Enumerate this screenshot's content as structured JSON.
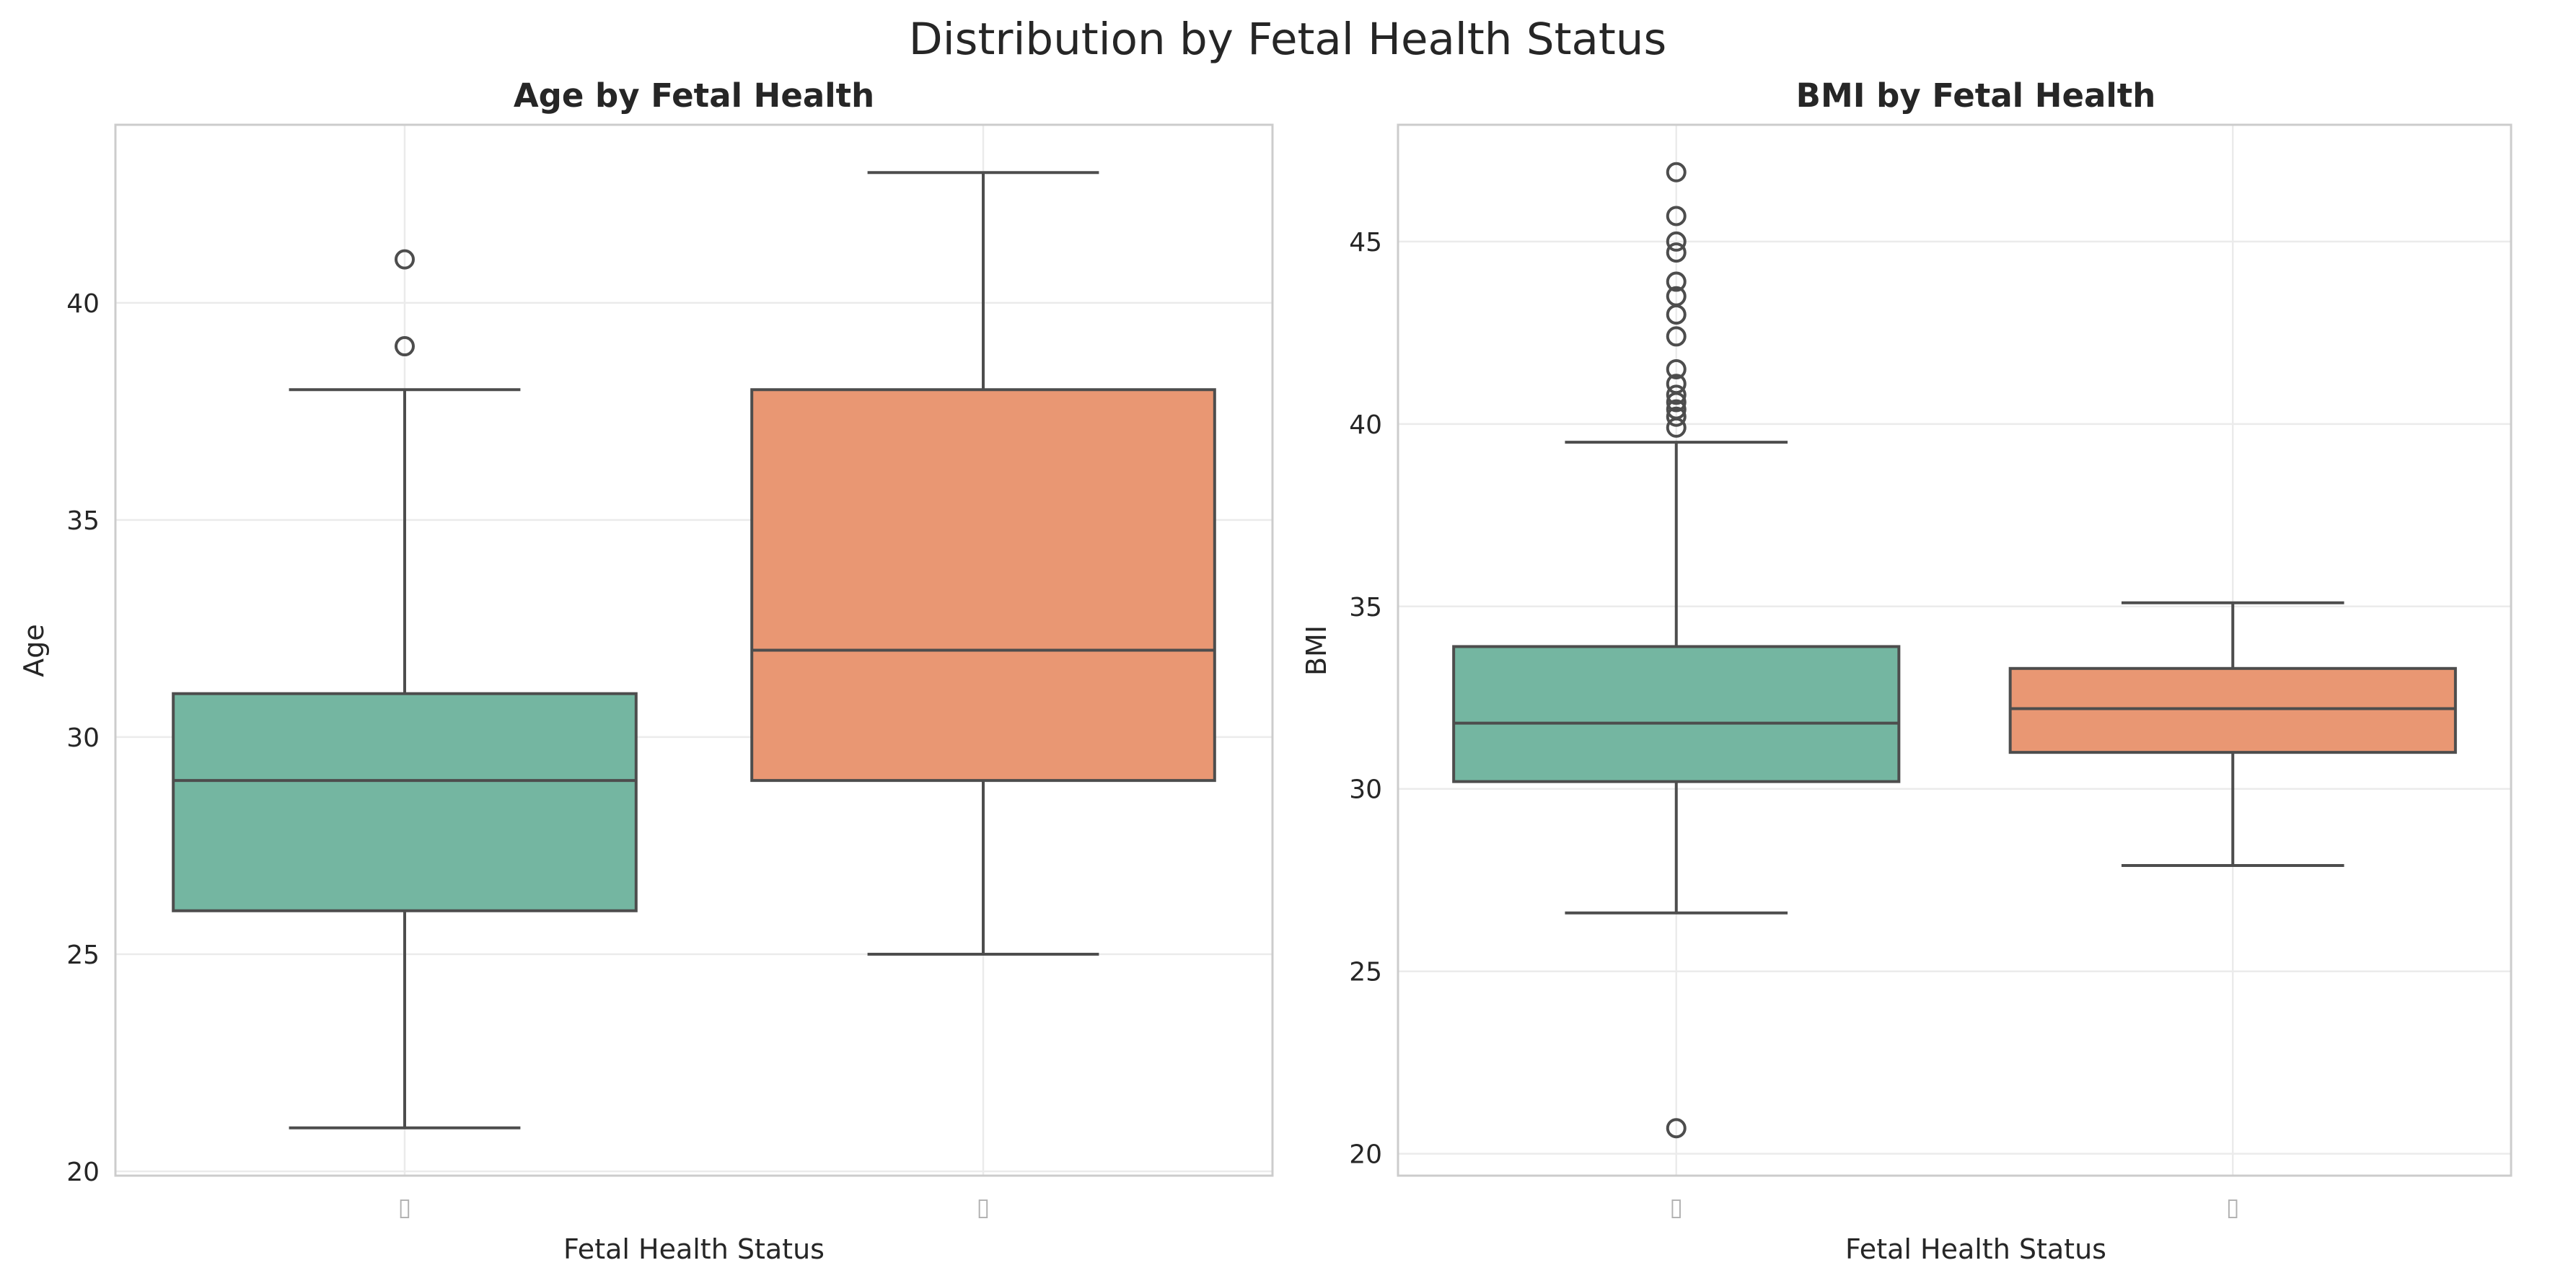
{
  "title": "Distribution by Fetal Health Status",
  "colors": {
    "box_1": "#74b6a1",
    "box_2": "#e99773",
    "line": "#4d4d4d",
    "grid": "#ebebeb",
    "frame": "#cccccc"
  },
  "chart_data": [
    {
      "type": "box",
      "title": "Age by Fetal Health",
      "xlabel": "Fetal Health Status",
      "ylabel": "Age",
      "categories": [
        "▯",
        "▯"
      ],
      "ylim": [
        19.9,
        44.1
      ],
      "yticks": [
        20,
        25,
        30,
        35,
        40
      ],
      "grid": true,
      "boxes": [
        {
          "whisker_low": 21,
          "q1": 26,
          "median": 29,
          "q3": 31,
          "whisker_high": 38,
          "outliers": [
            39,
            41
          ]
        },
        {
          "whisker_low": 25,
          "q1": 29,
          "median": 32,
          "q3": 38,
          "whisker_high": 43,
          "outliers": []
        }
      ]
    },
    {
      "type": "box",
      "title": "BMI by Fetal Health",
      "xlabel": "Fetal Health Status",
      "ylabel": "BMI",
      "categories": [
        "▯",
        "▯"
      ],
      "ylim": [
        19.4,
        48.2
      ],
      "yticks": [
        20,
        25,
        30,
        35,
        40,
        45
      ],
      "grid": true,
      "boxes": [
        {
          "whisker_low": 26.6,
          "q1": 30.2,
          "median": 31.8,
          "q3": 33.9,
          "whisker_high": 39.5,
          "outliers": [
            20.7,
            39.9,
            40.2,
            40.4,
            40.6,
            40.8,
            41.1,
            41.5,
            42.4,
            43.0,
            43.5,
            43.9,
            44.7,
            45.0,
            45.7,
            46.9
          ]
        },
        {
          "whisker_low": 27.9,
          "q1": 31.0,
          "median": 32.2,
          "q3": 33.3,
          "whisker_high": 35.1,
          "outliers": []
        }
      ]
    }
  ]
}
